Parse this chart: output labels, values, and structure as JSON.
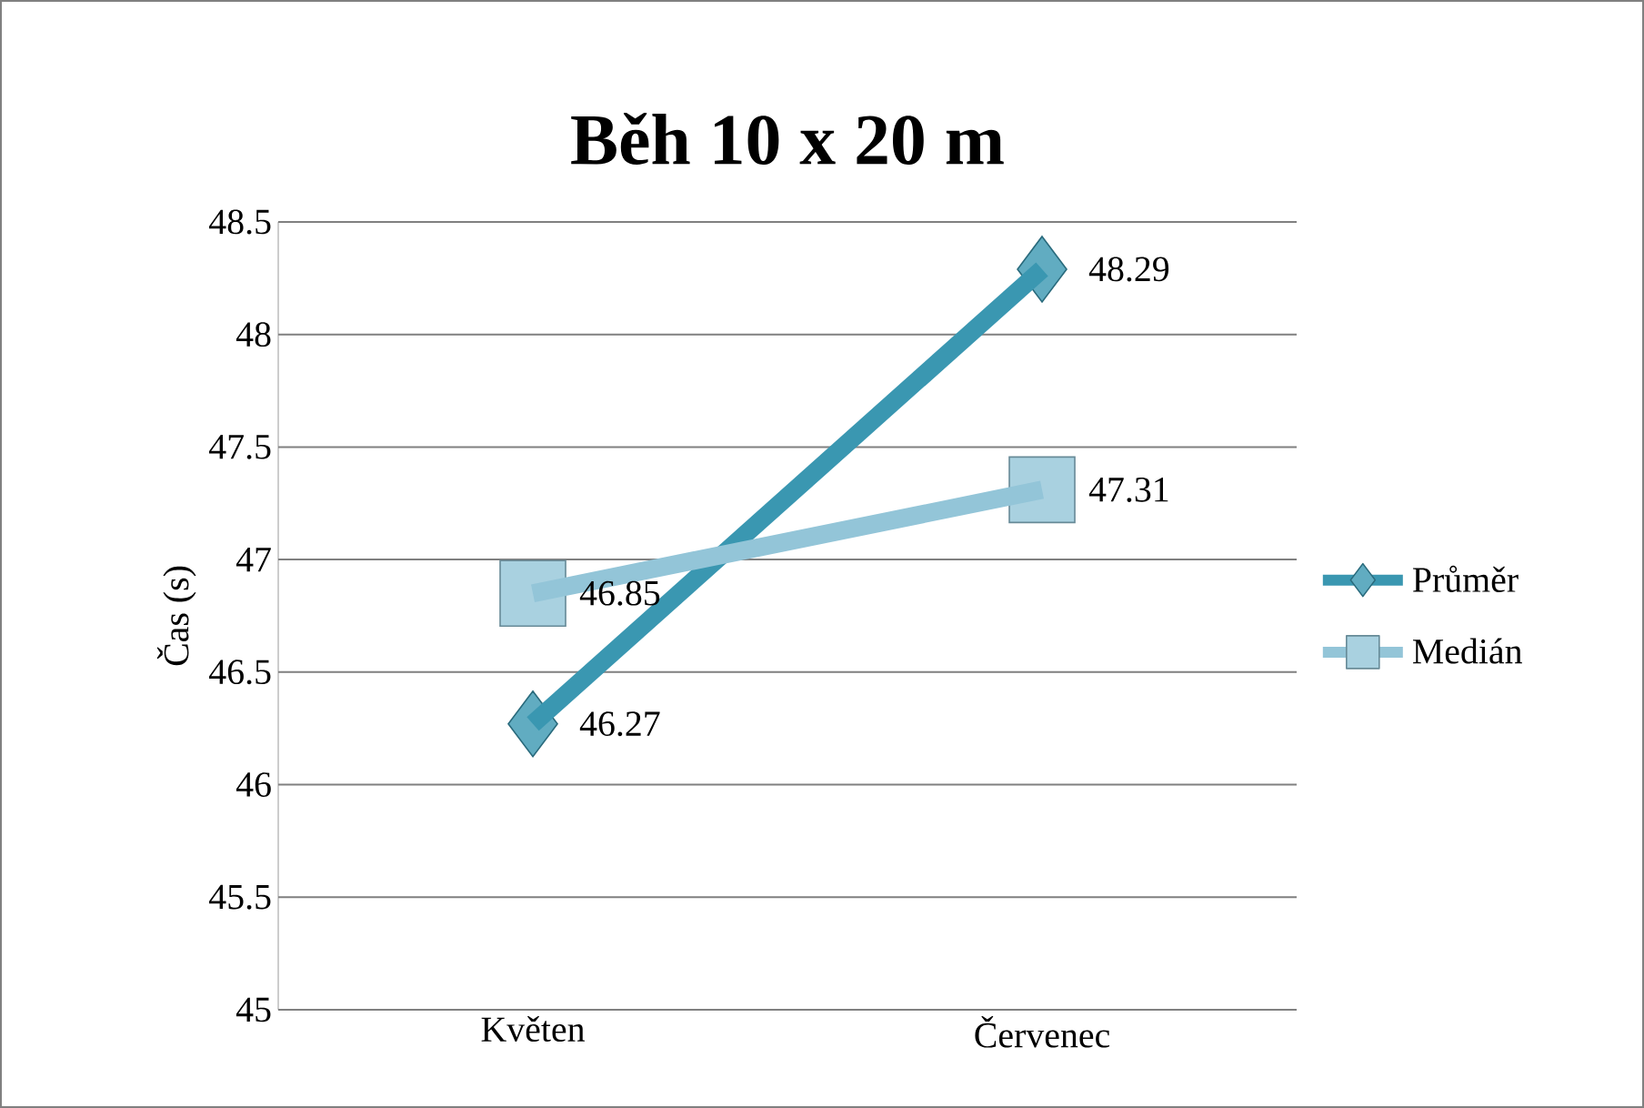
{
  "chart_data": {
    "type": "line",
    "title": "Běh 10 x 20 m",
    "ylabel": "Čas (s)",
    "categories": [
      "Květen",
      "Červenec"
    ],
    "series": [
      {
        "name": "Průměr",
        "color": "#3a97b1",
        "values": [
          46.27,
          48.29
        ],
        "marker": "diamond"
      },
      {
        "name": "Medián",
        "color": "#93c5d8",
        "values": [
          46.85,
          47.31
        ],
        "marker": "square"
      }
    ],
    "ylim": [
      45,
      48.5
    ],
    "yticks": [
      45,
      45.5,
      46,
      46.5,
      47,
      47.5,
      48,
      48.5
    ],
    "grid": "y",
    "legend": "right",
    "data_labels": true,
    "line_style": "solid"
  }
}
